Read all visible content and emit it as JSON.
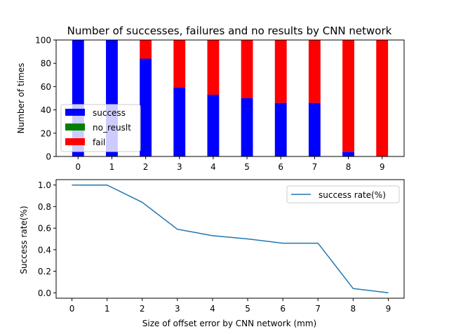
{
  "chart_data": [
    {
      "type": "bar",
      "stacked": true,
      "title": "Number of successes, failures and no results by CNN network",
      "xlabel": "",
      "ylabel": "Number of times",
      "categories": [
        "0",
        "1",
        "2",
        "3",
        "4",
        "5",
        "6",
        "7",
        "8",
        "9"
      ],
      "ylim": [
        0,
        100
      ],
      "yticks": [
        0,
        20,
        40,
        60,
        80,
        100
      ],
      "grid": false,
      "legend_position": "lower-left",
      "series": [
        {
          "name": "success",
          "color": "#0000ff",
          "values": [
            100,
            100,
            84,
            59,
            53,
            50,
            46,
            46,
            4,
            0
          ]
        },
        {
          "name": "no_reuslt",
          "color": "#008000",
          "values": [
            0,
            0,
            0,
            0,
            0,
            0,
            0,
            0,
            0,
            0
          ]
        },
        {
          "name": "fail",
          "color": "#ff0000",
          "values": [
            0,
            0,
            16,
            41,
            47,
            50,
            54,
            54,
            96,
            100
          ]
        }
      ]
    },
    {
      "type": "line",
      "title": "",
      "xlabel": "Size of offset error by CNN network (mm)",
      "ylabel": "Success rate(%)",
      "x": [
        0,
        1,
        2,
        3,
        4,
        5,
        6,
        7,
        8,
        9
      ],
      "xlim": [
        0,
        9
      ],
      "ylim": [
        0,
        1
      ],
      "yticks": [
        0.0,
        0.2,
        0.4,
        0.6,
        0.8,
        1.0
      ],
      "grid": false,
      "legend_position": "upper-right",
      "series": [
        {
          "name": "success rate(%)",
          "color": "#1f77b4",
          "values": [
            1.0,
            1.0,
            0.84,
            0.59,
            0.53,
            0.5,
            0.46,
            0.46,
            0.04,
            0.0
          ]
        }
      ]
    }
  ]
}
